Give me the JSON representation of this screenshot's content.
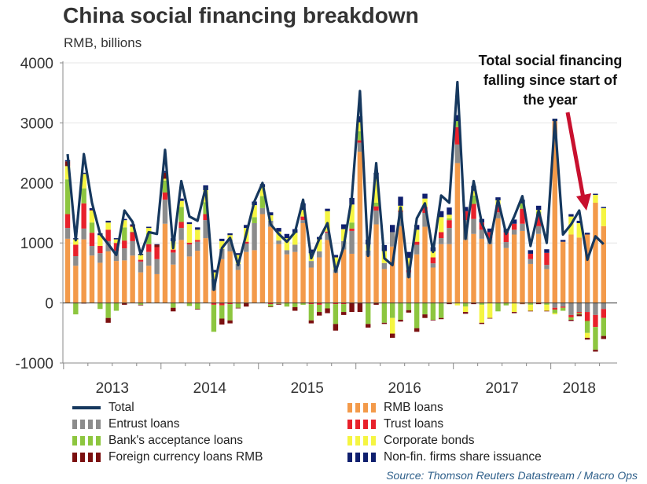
{
  "chart_data": {
    "type": "bar",
    "stacked": true,
    "title": "China social financing breakdown",
    "ylabel": "RMB, billions",
    "xlabel": "",
    "ylim": [
      -1000,
      4000
    ],
    "yticks": [
      -1000,
      0,
      1000,
      2000,
      3000,
      4000
    ],
    "grid": true,
    "year_labels": [
      "2013",
      "2014",
      "2015",
      "2016",
      "2017",
      "2018"
    ],
    "period": "monthly, Jan 2013 - Jul 2018",
    "annotation": [
      "Total social financing",
      "falling since start of",
      "the year"
    ],
    "legend_position": "bottom",
    "series": [
      {
        "name": "RMB loans",
        "color": "#f39a4a",
        "values": [
          1070,
          620,
          1060,
          790,
          670,
          860,
          700,
          710,
          790,
          510,
          620,
          480,
          1320,
          640,
          1050,
          775,
          870,
          1080,
          210,
          730,
          860,
          550,
          850,
          880,
          1480,
          1270,
          980,
          810,
          850,
          1330,
          590,
          760,
          1050,
          500,
          890,
          820,
          2520,
          785,
          1310,
          565,
          940,
          1280,
          420,
          810,
          1270,
          590,
          980,
          980,
          2330,
          1050,
          1150,
          1070,
          980,
          1410,
          915,
          1140,
          1200,
          650,
          1150,
          565,
          3030,
          1020,
          1140,
          1090,
          1140,
          1670,
          1280
        ]
      },
      {
        "name": "Entrust loans",
        "color": "#8c8c8c",
        "values": [
          180,
          160,
          180,
          160,
          160,
          170,
          170,
          200,
          240,
          180,
          230,
          250,
          400,
          200,
          200,
          200,
          150,
          300,
          190,
          170,
          200,
          100,
          140,
          450,
          100,
          100,
          60,
          70,
          120,
          50,
          110,
          100,
          120,
          60,
          140,
          380,
          150,
          90,
          230,
          100,
          240,
          240,
          90,
          160,
          230,
          70,
          100,
          270,
          310,
          330,
          250,
          150,
          100,
          100,
          100,
          80,
          120,
          80,
          130,
          70,
          -80,
          -60,
          -200,
          -150,
          -150,
          -200,
          -100
        ]
      },
      {
        "name": "Trust loans",
        "color": "#e8212b",
        "values": [
          230,
          190,
          420,
          220,
          120,
          190,
          130,
          130,
          150,
          30,
          130,
          200,
          120,
          50,
          100,
          30,
          30,
          100,
          -30,
          -40,
          -20,
          -10,
          30,
          0,
          0,
          -20,
          -10,
          0,
          0,
          60,
          -20,
          -30,
          20,
          -20,
          -20,
          40,
          40,
          0,
          70,
          0,
          0,
          20,
          40,
          50,
          100,
          100,
          100,
          130,
          290,
          150,
          250,
          120,
          100,
          120,
          160,
          100,
          250,
          90,
          200,
          200,
          -30,
          -20,
          -40,
          -20,
          -150,
          -200,
          -150
        ]
      },
      {
        "name": "Bank's acceptance loans",
        "color": "#8dc63f",
        "values": [
          580,
          -190,
          250,
          170,
          -100,
          -250,
          -130,
          220,
          10,
          -30,
          180,
          0,
          200,
          -80,
          250,
          -50,
          -100,
          200,
          -450,
          -220,
          -270,
          -70,
          0,
          100,
          200,
          -40,
          -10,
          -60,
          -70,
          -30,
          -270,
          -120,
          -90,
          -330,
          -130,
          100,
          150,
          -350,
          60,
          -330,
          -250,
          -280,
          -120,
          -420,
          -190,
          -280,
          -250,
          30,
          100,
          -60,
          140,
          -30,
          0,
          -140,
          -40,
          0,
          90,
          -30,
          40,
          -30,
          -60,
          -50,
          -40,
          -20,
          -200,
          -380,
          -300
        ]
      },
      {
        "name": "Corporate bonds",
        "color": "#f5f542",
        "values": [
          220,
          90,
          240,
          200,
          180,
          120,
          60,
          120,
          80,
          80,
          90,
          0,
          30,
          140,
          100,
          310,
          170,
          200,
          110,
          130,
          70,
          150,
          230,
          200,
          150,
          90,
          150,
          200,
          200,
          110,
          130,
          200,
          340,
          200,
          200,
          300,
          150,
          100,
          400,
          200,
          -260,
          80,
          200,
          200,
          140,
          100,
          250,
          60,
          -40,
          -90,
          80,
          -300,
          -250,
          80,
          0,
          -150,
          -10,
          -100,
          30,
          -100,
          -20,
          0,
          300,
          240,
          -80,
          130,
          300
        ]
      },
      {
        "name": "Foreign currency loans RMB",
        "color": "#7b1010",
        "values": [
          80,
          0,
          -10,
          10,
          0,
          -80,
          0,
          -30,
          20,
          -10,
          0,
          40,
          100,
          -60,
          0,
          0,
          -10,
          0,
          0,
          -100,
          -50,
          -10,
          -60,
          0,
          0,
          -10,
          -10,
          0,
          -60,
          0,
          -50,
          -60,
          -80,
          -110,
          -50,
          -150,
          -150,
          -60,
          -30,
          -20,
          -70,
          -30,
          -40,
          -60,
          -60,
          -10,
          -20,
          -20,
          0,
          -30,
          -20,
          -20,
          -10,
          0,
          0,
          -20,
          -10,
          -10,
          -20,
          -10,
          0,
          0,
          -20,
          -30,
          -30,
          -30,
          -50
        ]
      },
      {
        "name": "Non-fin. firms share issuance",
        "color": "#0f1f6e",
        "values": [
          20,
          20,
          20,
          30,
          30,
          30,
          20,
          20,
          20,
          20,
          20,
          10,
          30,
          50,
          40,
          30,
          40,
          80,
          40,
          40,
          30,
          30,
          50,
          60,
          50,
          50,
          60,
          70,
          60,
          110,
          60,
          40,
          40,
          40,
          80,
          110,
          100,
          80,
          100,
          100,
          120,
          150,
          100,
          80,
          80,
          70,
          100,
          120,
          100,
          70,
          80,
          60,
          60,
          50,
          60,
          70,
          60,
          60,
          70,
          60,
          40,
          30,
          40,
          40,
          30,
          20,
          20
        ]
      }
    ],
    "total": {
      "name": "Total",
      "color": "#16385e",
      "values": [
        2480,
        1045,
        2480,
        1670,
        1150,
        980,
        800,
        1540,
        1350,
        810,
        1180,
        1150,
        2550,
        915,
        2030,
        1440,
        1370,
        1920,
        220,
        915,
        1085,
        630,
        1150,
        1690,
        2000,
        1310,
        1150,
        1020,
        1180,
        1720,
        745,
        1070,
        1330,
        520,
        940,
        1760,
        3530,
        785,
        2330,
        745,
        630,
        1590,
        430,
        1410,
        1660,
        850,
        1790,
        1670,
        3680,
        1070,
        2030,
        1330,
        1000,
        1720,
        1150,
        1440,
        1780,
        950,
        1540,
        1000,
        3050,
        1140,
        1310,
        1540,
        720,
        1110,
        980
      ]
    }
  },
  "legend": {
    "left": [
      "Total",
      "Entrust loans",
      "Bank's acceptance loans",
      "Foreign currency loans RMB"
    ],
    "right": [
      "RMB loans",
      "Trust loans",
      "Corporate bonds",
      "Non-fin. firms share issuance"
    ]
  },
  "source": "Source: Thomson Reuters Datastream / Macro Ops"
}
